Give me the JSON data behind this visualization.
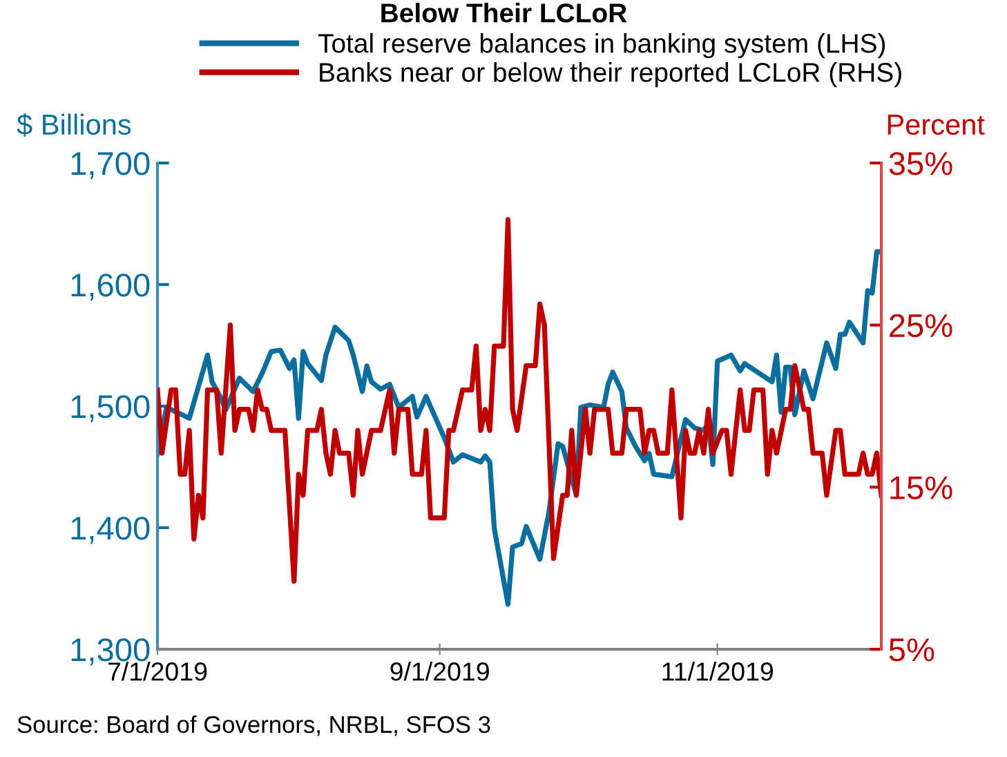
{
  "chart_data": {
    "type": "line",
    "title": "Below Their LCLoR",
    "ylabel": "$ Billions",
    "y2label": "Percent",
    "annotations": [
      "Source: Board of Governors, NRBL, SFOS 3"
    ],
    "xlim": [
      "2019-07-01",
      "2019-12-07"
    ],
    "xticks": [
      {
        "value": "2019-07-01",
        "label": "7/1/2019"
      },
      {
        "value": "2019-09-01",
        "label": "9/1/2019"
      },
      {
        "value": "2019-11-01",
        "label": "11/1/2019"
      }
    ],
    "ylim": [
      1300,
      1700
    ],
    "yticks": [
      {
        "value": 1300,
        "label": "1,300"
      },
      {
        "value": 1400,
        "label": "1,400"
      },
      {
        "value": 1500,
        "label": "1,500"
      },
      {
        "value": 1600,
        "label": "1,600"
      },
      {
        "value": 1700,
        "label": "1,700"
      }
    ],
    "y2lim": [
      5,
      35
    ],
    "y2ticks": [
      {
        "value": 5,
        "label": "5%"
      },
      {
        "value": 15,
        "label": "15%"
      },
      {
        "value": 25,
        "label": "25%"
      },
      {
        "value": 35,
        "label": "35%"
      }
    ],
    "grid": false,
    "legend": "top",
    "line_style": "solid",
    "marker": "none",
    "series": [
      {
        "name": "Total reserve balances in banking system (LHS)",
        "color": "#0a6e9e",
        "x": [
          "2019-07-01",
          "2019-07-03",
          "2019-07-08",
          "2019-07-12",
          "2019-07-13",
          "2019-07-15",
          "2019-07-16",
          "2019-07-19",
          "2019-07-22",
          "2019-07-24",
          "2019-07-26",
          "2019-07-28",
          "2019-07-30",
          "2019-07-31",
          "2019-08-01",
          "2019-08-02",
          "2019-08-03",
          "2019-08-06",
          "2019-08-07",
          "2019-08-09",
          "2019-08-12",
          "2019-08-13",
          "2019-08-15",
          "2019-08-16",
          "2019-08-17",
          "2019-08-19",
          "2019-08-21",
          "2019-08-23",
          "2019-08-26",
          "2019-08-27",
          "2019-08-29",
          "2019-09-02",
          "2019-09-04",
          "2019-09-06",
          "2019-09-10",
          "2019-09-11",
          "2019-09-12",
          "2019-09-13",
          "2019-09-16",
          "2019-09-17",
          "2019-09-19",
          "2019-09-20",
          "2019-09-23",
          "2019-09-25",
          "2019-09-27",
          "2019-09-28",
          "2019-10-01",
          "2019-10-02",
          "2019-10-04",
          "2019-10-07",
          "2019-10-08",
          "2019-10-09",
          "2019-10-11",
          "2019-10-12",
          "2019-10-14",
          "2019-10-16",
          "2019-10-17",
          "2019-10-18",
          "2019-10-22",
          "2019-10-25",
          "2019-10-27",
          "2019-10-29",
          "2019-10-30",
          "2019-10-31",
          "2019-11-01",
          "2019-11-04",
          "2019-11-06",
          "2019-11-07",
          "2019-11-13",
          "2019-11-14",
          "2019-11-15",
          "2019-11-16",
          "2019-11-17",
          "2019-11-18",
          "2019-11-20",
          "2019-11-22",
          "2019-11-25",
          "2019-11-27",
          "2019-11-28",
          "2019-11-29",
          "2019-11-30",
          "2019-12-03",
          "2019-12-04",
          "2019-12-05",
          "2019-12-06",
          "2019-12-07"
        ],
        "values": [
          1461,
          1499,
          1490,
          1542,
          1520,
          1506,
          1497,
          1523,
          1512,
          1527,
          1545,
          1546,
          1531,
          1538,
          1490,
          1545,
          1535,
          1521,
          1542,
          1565,
          1554,
          1542,
          1512,
          1533,
          1520,
          1514,
          1518,
          1499,
          1508,
          1491,
          1508,
          1474,
          1454,
          1460,
          1454,
          1459,
          1454,
          1399,
          1337,
          1384,
          1387,
          1401,
          1374,
          1413,
          1469,
          1467,
          1427,
          1499,
          1501,
          1499,
          1518,
          1528,
          1512,
          1482,
          1467,
          1455,
          1461,
          1444,
          1442,
          1489,
          1482,
          1480,
          1486,
          1452,
          1537,
          1542,
          1529,
          1535,
          1520,
          1542,
          1495,
          1532,
          1532,
          1493,
          1529,
          1506,
          1552,
          1531,
          1559,
          1559,
          1569,
          1552,
          1595,
          1593,
          1627,
          1627
        ]
      },
      {
        "name": "Banks near or below their reported LCLoR (RHS)",
        "color": "#c00000",
        "axis": "y2",
        "x": [
          "2019-07-01",
          "2019-07-02",
          "2019-07-04",
          "2019-07-05",
          "2019-07-06",
          "2019-07-07",
          "2019-07-08",
          "2019-07-09",
          "2019-07-10",
          "2019-07-11",
          "2019-07-12",
          "2019-07-14",
          "2019-07-15",
          "2019-07-17",
          "2019-07-18",
          "2019-07-19",
          "2019-07-21",
          "2019-07-22",
          "2019-07-23",
          "2019-07-24",
          "2019-07-25",
          "2019-07-26",
          "2019-07-29",
          "2019-07-31",
          "2019-08-01",
          "2019-08-02",
          "2019-08-03",
          "2019-08-05",
          "2019-08-06",
          "2019-08-07",
          "2019-08-08",
          "2019-08-09",
          "2019-08-10",
          "2019-08-12",
          "2019-08-13",
          "2019-08-14",
          "2019-08-15",
          "2019-08-17",
          "2019-08-19",
          "2019-08-21",
          "2019-08-22",
          "2019-08-23",
          "2019-08-25",
          "2019-08-26",
          "2019-08-28",
          "2019-08-29",
          "2019-08-30",
          "2019-09-02",
          "2019-09-03",
          "2019-09-04",
          "2019-09-06",
          "2019-09-08",
          "2019-09-09",
          "2019-09-10",
          "2019-09-11",
          "2019-09-12",
          "2019-09-13",
          "2019-09-15",
          "2019-09-16",
          "2019-09-17",
          "2019-09-18",
          "2019-09-20",
          "2019-09-22",
          "2019-09-23",
          "2019-09-24",
          "2019-09-26",
          "2019-09-28",
          "2019-09-29",
          "2019-09-30",
          "2019-10-01",
          "2019-10-03",
          "2019-10-04",
          "2019-10-05",
          "2019-10-08",
          "2019-10-09",
          "2019-10-11",
          "2019-10-12",
          "2019-10-15",
          "2019-10-16",
          "2019-10-17",
          "2019-10-18",
          "2019-10-19",
          "2019-10-21",
          "2019-10-22",
          "2019-10-24",
          "2019-10-25",
          "2019-10-26",
          "2019-10-27",
          "2019-10-28",
          "2019-10-29",
          "2019-10-30",
          "2019-10-31",
          "2019-11-02",
          "2019-11-03",
          "2019-11-04",
          "2019-11-06",
          "2019-11-07",
          "2019-11-08",
          "2019-11-09",
          "2019-11-11",
          "2019-11-12",
          "2019-11-13",
          "2019-11-14",
          "2019-11-16",
          "2019-11-17",
          "2019-11-18",
          "2019-11-20",
          "2019-11-21",
          "2019-11-22",
          "2019-11-24",
          "2019-11-25",
          "2019-11-27",
          "2019-11-28",
          "2019-11-29",
          "2019-12-02",
          "2019-12-03",
          "2019-12-04",
          "2019-12-05",
          "2019-12-06",
          "2019-12-07"
        ],
        "values": [
          21.0,
          17.1,
          21.0,
          21.0,
          15.8,
          15.8,
          18.5,
          11.8,
          14.5,
          13.1,
          21.0,
          21.0,
          17.1,
          25.0,
          18.5,
          19.8,
          19.8,
          18.5,
          21.0,
          19.8,
          19.8,
          18.5,
          18.5,
          9.2,
          15.8,
          14.5,
          18.5,
          18.5,
          19.8,
          17.1,
          15.8,
          18.5,
          17.1,
          17.1,
          14.5,
          18.5,
          15.8,
          18.5,
          18.5,
          21.0,
          17.1,
          19.8,
          19.8,
          15.8,
          15.8,
          18.5,
          13.1,
          13.1,
          18.5,
          18.5,
          21.0,
          21.0,
          23.7,
          18.5,
          19.8,
          18.5,
          23.7,
          23.7,
          31.5,
          19.8,
          18.5,
          22.5,
          22.5,
          26.3,
          25.0,
          10.6,
          14.5,
          14.5,
          18.5,
          14.5,
          19.8,
          17.1,
          19.8,
          19.8,
          17.1,
          17.1,
          19.8,
          19.8,
          17.1,
          18.5,
          18.5,
          17.1,
          17.1,
          21.0,
          13.1,
          18.5,
          17.1,
          17.1,
          18.5,
          17.1,
          19.8,
          17.1,
          18.5,
          18.5,
          15.8,
          21.0,
          18.5,
          18.5,
          21.0,
          21.0,
          15.8,
          18.5,
          17.1,
          19.8,
          19.8,
          22.5,
          19.8,
          19.8,
          17.1,
          17.1,
          14.5,
          18.5,
          18.5,
          15.8,
          15.8,
          17.1,
          15.8,
          15.8,
          17.1,
          14.5
        ]
      }
    ]
  }
}
